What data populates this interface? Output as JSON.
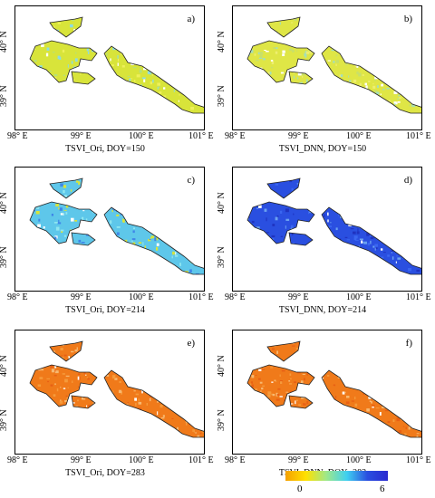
{
  "panels": [
    {
      "letter": "a)",
      "caption": "TSVI_Ori, DOY=150",
      "scheme": "a"
    },
    {
      "letter": "b)",
      "caption": "TSVI_DNN, DOY=150",
      "scheme": "b"
    },
    {
      "letter": "c)",
      "caption": "TSVI_Ori, DOY=214",
      "scheme": "c"
    },
    {
      "letter": "d)",
      "caption": "TSVI_DNN, DOY=214",
      "scheme": "d"
    },
    {
      "letter": "e)",
      "caption": "TSVI_Ori, DOY=283",
      "scheme": "e"
    },
    {
      "letter": "f)",
      "caption": "TSVI_DNN, DOY=283",
      "scheme": "f"
    }
  ],
  "lat_labels": [
    "40° N",
    "39° N"
  ],
  "lon_labels": [
    "98° E",
    "99° E",
    "100° E",
    "101° E"
  ],
  "colorbar": {
    "min": "0",
    "max": "6",
    "colors": [
      "#f5a000",
      "#ffe100",
      "#9ee88a",
      "#3fd0f0",
      "#2a4fe0",
      "#2a2ad0"
    ]
  },
  "scheme_colors": {
    "a": [
      "#d8e43a",
      "#eef05a",
      "#b6e07a",
      "#8ddce0"
    ],
    "b": [
      "#dfe646",
      "#c8e06a",
      "#a5dfb9",
      "#eeee70"
    ],
    "c": [
      "#5ec7ea",
      "#3f86e8",
      "#8fe6f0",
      "#d8e43a"
    ],
    "d": [
      "#2a4fe0",
      "#3a66f0",
      "#1f33c0",
      "#6aa0f0"
    ],
    "e": [
      "#f07a1a",
      "#f59a3a",
      "#e86014",
      "#f7b870"
    ],
    "f": [
      "#f07a1a",
      "#f59a3a",
      "#e86014",
      "#f7b870"
    ]
  }
}
